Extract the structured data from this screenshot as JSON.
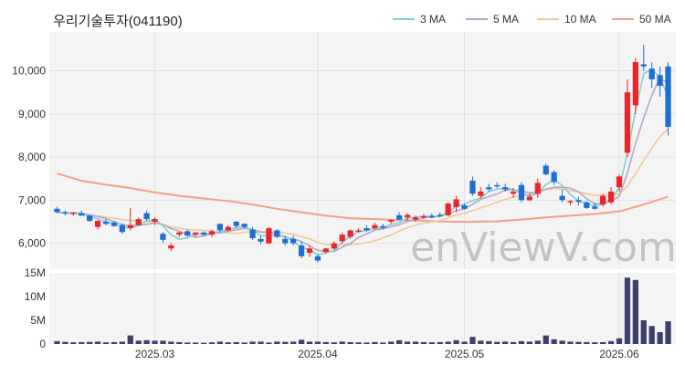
{
  "title": "우리기술투자(041190)",
  "watermark": "enViewV.com",
  "legend": [
    {
      "label": "3 MA",
      "color": "#7fd1cf"
    },
    {
      "label": "5 MA",
      "color": "#b9a4c9"
    },
    {
      "label": "10 MA",
      "color": "#f2c79a"
    },
    {
      "label": "50 MA",
      "color": "#f4a08a"
    }
  ],
  "colors": {
    "up": "#e8262c",
    "down": "#1f6fd1",
    "volume": "#3f3f6b"
  },
  "chart_data": {
    "type": "candlestick",
    "price_axis": {
      "ylim": [
        5400,
        10900
      ],
      "ticks": [
        "6,000",
        "7,000",
        "8,000",
        "9,000",
        "10,000"
      ],
      "tick_values": [
        6000,
        7000,
        8000,
        9000,
        10000
      ]
    },
    "volume_axis": {
      "ylim": [
        0,
        15000000
      ],
      "ticks": [
        "0",
        "5M",
        "10M",
        "15M"
      ],
      "tick_values": [
        0,
        5000000,
        10000000,
        15000000
      ]
    },
    "x_ticks": [
      {
        "label": "2025.03",
        "index": 12
      },
      {
        "label": "2025.04",
        "index": 32
      },
      {
        "label": "2025.05",
        "index": 50
      },
      {
        "label": "2025.06",
        "index": 69
      }
    ],
    "candles": [
      [
        6800,
        6850,
        6700,
        6720,
        600000
      ],
      [
        6720,
        6760,
        6650,
        6690,
        450000
      ],
      [
        6690,
        6720,
        6640,
        6710,
        350000
      ],
      [
        6700,
        6760,
        6680,
        6640,
        400000
      ],
      [
        6640,
        6660,
        6500,
        6520,
        450000
      ],
      [
        6380,
        6540,
        6320,
        6520,
        500000
      ],
      [
        6500,
        6560,
        6420,
        6450,
        350000
      ],
      [
        6480,
        6520,
        6380,
        6400,
        400000
      ],
      [
        6420,
        6460,
        6220,
        6260,
        500000
      ],
      [
        6350,
        6820,
        6300,
        6420,
        1800000
      ],
      [
        6420,
        6600,
        6400,
        6560,
        700000
      ],
      [
        6700,
        6760,
        6520,
        6560,
        800000
      ],
      [
        6500,
        6600,
        6420,
        6560,
        700000
      ],
      [
        6220,
        6260,
        6000,
        6080,
        700000
      ],
      [
        5880,
        6000,
        5820,
        5950,
        500000
      ],
      [
        6200,
        6270,
        6150,
        6250,
        400000
      ],
      [
        6280,
        6310,
        6150,
        6180,
        300000
      ],
      [
        6200,
        6260,
        6150,
        6250,
        300000
      ],
      [
        6250,
        6280,
        6180,
        6200,
        250000
      ],
      [
        6200,
        6320,
        6150,
        6280,
        350000
      ],
      [
        6450,
        6460,
        6250,
        6300,
        500000
      ],
      [
        6300,
        6420,
        6280,
        6380,
        350000
      ],
      [
        6500,
        6520,
        6350,
        6400,
        400000
      ],
      [
        6450,
        6470,
        6350,
        6380,
        300000
      ],
      [
        6320,
        6380,
        6080,
        6120,
        500000
      ],
      [
        6100,
        6180,
        5980,
        6040,
        500000
      ],
      [
        6000,
        6380,
        5980,
        6350,
        300000
      ],
      [
        6300,
        6330,
        6120,
        6150,
        500000
      ],
      [
        6100,
        6150,
        5950,
        6000,
        450000
      ],
      [
        6100,
        6180,
        5950,
        6000,
        500000
      ],
      [
        5950,
        6050,
        5650,
        5700,
        900000
      ],
      [
        5780,
        5950,
        5680,
        5880,
        500000
      ],
      [
        5700,
        5750,
        5550,
        5600,
        500000
      ],
      [
        5800,
        5900,
        5750,
        5880,
        400000
      ],
      [
        5880,
        6050,
        5850,
        6000,
        350000
      ],
      [
        6050,
        6250,
        6000,
        6200,
        500000
      ],
      [
        6150,
        6320,
        6100,
        6300,
        400000
      ],
      [
        6300,
        6350,
        6250,
        6300,
        350000
      ],
      [
        6350,
        6420,
        6280,
        6300,
        300000
      ],
      [
        6350,
        6480,
        6320,
        6420,
        400000
      ],
      [
        6400,
        6450,
        6320,
        6360,
        300000
      ],
      [
        6500,
        6560,
        6450,
        6540,
        500000
      ],
      [
        6650,
        6720,
        6540,
        6550,
        800000
      ],
      [
        6600,
        6700,
        6520,
        6660,
        500000
      ],
      [
        6550,
        6650,
        6500,
        6600,
        500000
      ],
      [
        6620,
        6680,
        6560,
        6630,
        400000
      ],
      [
        6640,
        6700,
        6580,
        6600,
        350000
      ],
      [
        6660,
        6720,
        6600,
        6640,
        400000
      ],
      [
        6650,
        6950,
        6620,
        6920,
        500000
      ],
      [
        6840,
        7100,
        6720,
        7020,
        800000
      ],
      [
        6880,
        6920,
        6780,
        6800,
        500000
      ],
      [
        7450,
        7550,
        7100,
        7150,
        1500000
      ],
      [
        7100,
        7300,
        7050,
        7200,
        700000
      ],
      [
        7300,
        7380,
        7200,
        7250,
        600000
      ],
      [
        7350,
        7420,
        7280,
        7320,
        450000
      ],
      [
        7300,
        7380,
        7200,
        7250,
        500000
      ],
      [
        7150,
        7280,
        7050,
        7200,
        400000
      ],
      [
        7350,
        7420,
        6950,
        7000,
        600000
      ],
      [
        7000,
        7150,
        6980,
        7080,
        500000
      ],
      [
        7150,
        7500,
        7050,
        7400,
        700000
      ],
      [
        7800,
        7850,
        7580,
        7600,
        1800000
      ],
      [
        7650,
        7700,
        7350,
        7420,
        1000000
      ],
      [
        7100,
        7250,
        6950,
        7000,
        700000
      ],
      [
        6950,
        7000,
        6880,
        6980,
        500000
      ],
      [
        7000,
        7080,
        6880,
        6960,
        450000
      ],
      [
        6950,
        6980,
        6800,
        6820,
        400000
      ],
      [
        6850,
        6950,
        6780,
        6800,
        350000
      ],
      [
        6900,
        7150,
        6850,
        7100,
        400000
      ],
      [
        6950,
        7300,
        6900,
        7200,
        600000
      ],
      [
        7300,
        7600,
        7200,
        7550,
        1200000
      ],
      [
        8100,
        9800,
        8000,
        9500,
        14000000
      ],
      [
        9200,
        10300,
        9000,
        10200,
        13500000
      ],
      [
        10150,
        10600,
        10000,
        10100,
        5000000
      ],
      [
        10050,
        10200,
        9600,
        9800,
        3800000
      ],
      [
        9900,
        10100,
        9400,
        9650,
        2500000
      ],
      [
        10100,
        10200,
        8500,
        8700,
        4800000
      ]
    ],
    "ma_periods": [
      3,
      5,
      10,
      50
    ],
    "ma50": [
      [
        0,
        7620
      ],
      [
        3,
        7450
      ],
      [
        6,
        7360
      ],
      [
        9,
        7280
      ],
      [
        12,
        7180
      ],
      [
        15,
        7100
      ],
      [
        18,
        7040
      ],
      [
        21,
        6980
      ],
      [
        24,
        6900
      ],
      [
        27,
        6800
      ],
      [
        30,
        6720
      ],
      [
        33,
        6640
      ],
      [
        36,
        6580
      ],
      [
        39,
        6560
      ],
      [
        42,
        6540
      ],
      [
        45,
        6520
      ],
      [
        48,
        6500
      ],
      [
        51,
        6500
      ],
      [
        54,
        6510
      ],
      [
        57,
        6550
      ],
      [
        60,
        6600
      ],
      [
        63,
        6640
      ],
      [
        66,
        6680
      ],
      [
        69,
        6740
      ],
      [
        72,
        6900
      ],
      [
        75,
        7080
      ]
    ]
  }
}
